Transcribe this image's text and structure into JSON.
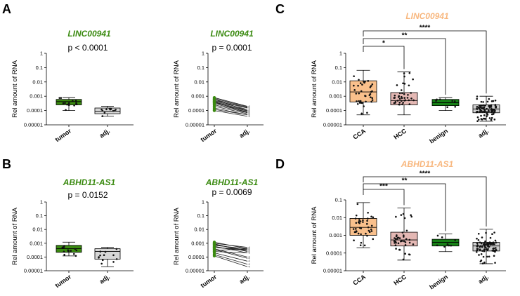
{
  "colors": {
    "green": "#3a8a10",
    "green_title": "#3a8a10",
    "grey_box": "#d6d6d6",
    "orange_box": "#f9c08c",
    "orange_title": "#f8b77e",
    "rose_box": "#e4b8b4",
    "benign_box": "#168016",
    "adj_box": "#cfcfcf"
  },
  "panels": {
    "A": {
      "label": "A"
    },
    "B": {
      "label": "B"
    },
    "C": {
      "label": "C"
    },
    "D": {
      "label": "D"
    }
  },
  "chart_data": [
    {
      "id": "A-box",
      "panel": "A",
      "type": "box",
      "title": "LINC00941",
      "pvalue": "p < 0.0001",
      "ylabel": "Rel amount of RNA",
      "yticks": [
        "0.00001",
        "0.0001",
        "0.001",
        "0.01",
        "0.1",
        "1"
      ],
      "ylim": [
        1e-05,
        1
      ],
      "categories": [
        "tumor",
        "adj."
      ],
      "boxes": [
        {
          "min": 0.0001,
          "q1": 0.00025,
          "median": 0.00042,
          "q3": 0.0006,
          "max": 0.0008
        },
        {
          "min": 4e-05,
          "q1": 6e-05,
          "median": 9e-05,
          "q3": 0.00015,
          "max": 0.0002
        }
      ]
    },
    {
      "id": "A-paired",
      "panel": "A",
      "type": "line",
      "title": "LINC00941",
      "pvalue": "p = 0.0001",
      "ylabel": "Rel amount of RNA",
      "yticks": [
        "0.00001",
        "0.0001",
        "0.001",
        "0.01",
        "0.1",
        "1"
      ],
      "ylim": [
        1e-05,
        1
      ],
      "categories": [
        "tumor",
        "adj."
      ],
      "pairs": [
        [
          0.0008,
          0.0002
        ],
        [
          0.0007,
          0.00018
        ],
        [
          0.0006,
          0.00016
        ],
        [
          0.0005,
          0.00015
        ],
        [
          0.00045,
          0.00012
        ],
        [
          0.0004,
          0.0001
        ],
        [
          0.00035,
          9e-05
        ],
        [
          0.0003,
          8e-05
        ],
        [
          0.00025,
          7e-05
        ],
        [
          0.0002,
          6e-05
        ],
        [
          0.00015,
          5e-05
        ],
        [
          0.00012,
          5e-05
        ],
        [
          0.0001,
          4e-05
        ],
        [
          0.0006,
          0.0001
        ],
        [
          0.0004,
          7e-05
        ]
      ]
    },
    {
      "id": "B-box",
      "panel": "B",
      "type": "box",
      "title": "ABHD11-AS1",
      "pvalue": "p = 0.0152",
      "ylabel": "Rel amount of RNA",
      "yticks": [
        "0.00001",
        "0.0001",
        "0.001",
        "0.01",
        "0.1",
        "1"
      ],
      "ylim": [
        1e-05,
        1
      ],
      "categories": [
        "tumor",
        "adj."
      ],
      "boxes": [
        {
          "min": 0.00012,
          "q1": 0.00022,
          "median": 0.0004,
          "q3": 0.0007,
          "max": 0.0012
        },
        {
          "min": 2e-05,
          "q1": 7e-05,
          "median": 0.00025,
          "q3": 0.0004,
          "max": 0.0005
        }
      ]
    },
    {
      "id": "B-paired",
      "panel": "B",
      "type": "line",
      "title": "ABHD11-AS1",
      "pvalue": "p = 0.0069",
      "ylabel": "Rel amount of RNA",
      "yticks": [
        "0.00001",
        "0.0001",
        "0.001",
        "0.01",
        "0.1",
        "1"
      ],
      "ylim": [
        1e-05,
        1
      ],
      "categories": [
        "tumor",
        "adj."
      ],
      "pairs": [
        [
          0.0012,
          0.0004
        ],
        [
          0.001,
          0.0005
        ],
        [
          0.0008,
          0.0003
        ],
        [
          0.0007,
          0.0004
        ],
        [
          0.0006,
          0.0002
        ],
        [
          0.0005,
          0.0003
        ],
        [
          0.0004,
          0.0001
        ],
        [
          0.00035,
          8e-05
        ],
        [
          0.0003,
          0.0004
        ],
        [
          0.00025,
          0.0002
        ],
        [
          0.0002,
          5e-05
        ],
        [
          0.00015,
          3e-05
        ],
        [
          0.00012,
          2e-05
        ],
        [
          0.0005,
          0.00035
        ],
        [
          0.0009,
          0.00025
        ]
      ]
    },
    {
      "id": "C-box",
      "panel": "C",
      "type": "box",
      "title": "LINC00941",
      "pvalue": "",
      "ylabel": "Rel amount of RNA",
      "yticks": [
        "0.00001",
        "0.0001",
        "0.001",
        "0.01",
        "0.1",
        "1"
      ],
      "ylim": [
        1e-05,
        1
      ],
      "categories": [
        "CCA",
        "HCC",
        "benign",
        "adj."
      ],
      "boxes": [
        {
          "min": 5e-05,
          "q1": 0.0004,
          "median": 0.002,
          "q3": 0.012,
          "max": 0.065
        },
        {
          "min": 5e-05,
          "q1": 0.00025,
          "median": 0.0005,
          "q3": 0.0018,
          "max": 0.05
        },
        {
          "min": 0.0001,
          "q1": 0.00022,
          "median": 0.00035,
          "q3": 0.0006,
          "max": 0.0008
        },
        {
          "min": 1.8e-05,
          "q1": 7e-05,
          "median": 0.00013,
          "q3": 0.00025,
          "max": 0.001
        }
      ],
      "significance": [
        "*",
        "**",
        "****"
      ]
    },
    {
      "id": "D-box",
      "panel": "D",
      "type": "box",
      "title": "ABHD11-AS1",
      "pvalue": "",
      "ylabel": "Rel amount of RNA",
      "yticks": [
        "0.00001",
        "0.0001",
        "0.001",
        "0.01",
        "0.1"
      ],
      "ylim": [
        1e-05,
        0.1
      ],
      "categories": [
        "CCA",
        "HCC",
        "benign",
        "adj."
      ],
      "boxes": [
        {
          "min": 0.0002,
          "q1": 0.001,
          "median": 0.0028,
          "q3": 0.009,
          "max": 0.07
        },
        {
          "min": 4e-05,
          "q1": 0.00025,
          "median": 0.00055,
          "q3": 0.0015,
          "max": 0.035
        },
        {
          "min": 0.00012,
          "q1": 0.00025,
          "median": 0.0004,
          "q3": 0.0006,
          "max": 0.0012
        },
        {
          "min": 2.5e-05,
          "q1": 0.00013,
          "median": 0.00025,
          "q3": 0.0004,
          "max": 0.0022
        }
      ],
      "significance": [
        "***",
        "**",
        "****"
      ]
    }
  ]
}
